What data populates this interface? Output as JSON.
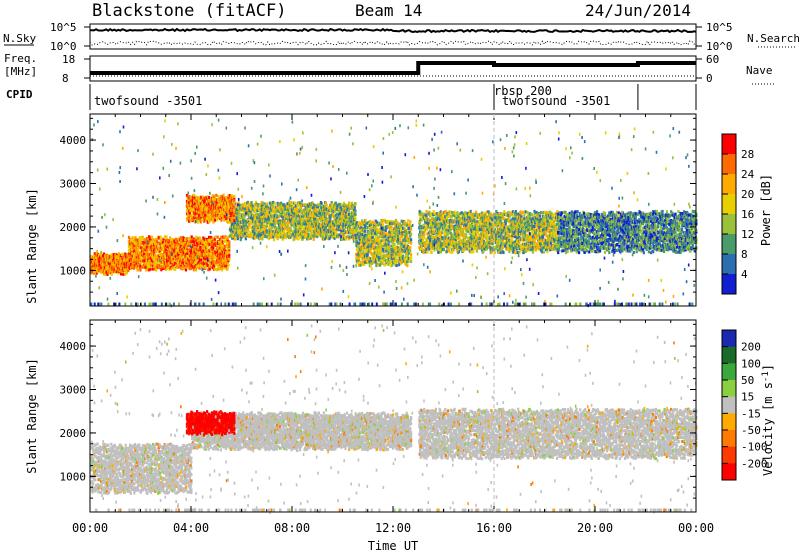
{
  "header": {
    "station": "Blackstone (fitACF)",
    "beam": "Beam 14",
    "date": "24/Jun/2014"
  },
  "noise_panel": {
    "left_label": "N.Sky",
    "right_label": "N.Search",
    "left_ticks": [
      "10^5",
      "10^0"
    ],
    "right_ticks": [
      "10^5",
      "10^0"
    ]
  },
  "freq_panel": {
    "left_label_1": "Freq.",
    "left_label_2": "[MHz]",
    "left_ticks": [
      "18",
      "8"
    ],
    "right_label": "Nave",
    "right_ticks": [
      "60",
      "0"
    ]
  },
  "cpid": {
    "label": "CPID",
    "programs": [
      "twofsound -3501",
      "rbsp 200",
      "twofsound -3501"
    ],
    "change_hours": [
      16.0,
      21.7
    ]
  },
  "axes": {
    "ylabel": "Slant Range [km]",
    "xlabel": "Time UT",
    "y_ticks": [
      "4000",
      "3000",
      "2000",
      "1000"
    ],
    "x_ticks": [
      "00:00",
      "04:00",
      "08:00",
      "12:00",
      "16:00",
      "20:00",
      "00:00"
    ]
  },
  "chart_data": [
    {
      "type": "heatmap",
      "panel": "power",
      "title": "",
      "xlabel": "",
      "ylabel": "Slant Range [km]",
      "xlim_hours": [
        0,
        24
      ],
      "ylim_km": [
        180,
        4600
      ],
      "colorbar_label": "Power [dB]",
      "colorbar_ticks": [
        "28",
        "24",
        "20",
        "16",
        "12",
        "8",
        "4"
      ],
      "colorbar_colors": [
        "#ff0000",
        "#ff6a00",
        "#ffaa00",
        "#e8d000",
        "#9bc03a",
        "#4a9a6a",
        "#2c6fb0",
        "#1020d0"
      ],
      "bands": [
        {
          "t0": 0.0,
          "t1": 1.5,
          "r0": 1000,
          "r1": 1400,
          "level": "high"
        },
        {
          "t0": 1.5,
          "t1": 5.5,
          "r0": 1100,
          "r1": 1800,
          "level": "high"
        },
        {
          "t0": 5.5,
          "t1": 10.5,
          "r0": 1800,
          "r1": 2600,
          "level": "mid"
        },
        {
          "t0": 10.5,
          "t1": 12.7,
          "r0": 1200,
          "r1": 2200,
          "level": "mid"
        },
        {
          "t0": 3.8,
          "t1": 5.7,
          "r0": 2200,
          "r1": 2750,
          "level": "high"
        },
        {
          "t0": 13.0,
          "t1": 18.5,
          "r0": 1500,
          "r1": 2400,
          "level": "mid"
        },
        {
          "t0": 18.5,
          "t1": 24.0,
          "r0": 1500,
          "r1": 2400,
          "level": "low"
        }
      ]
    },
    {
      "type": "heatmap",
      "panel": "velocity",
      "title": "",
      "xlabel": "Time UT",
      "ylabel": "Slant Range [km]",
      "xlim_hours": [
        0,
        24
      ],
      "ylim_km": [
        180,
        4600
      ],
      "colorbar_label": "Velocity [m s-1]",
      "colorbar_ticks": [
        "200",
        "100",
        "50",
        "15",
        "-15",
        "-50",
        "-100",
        "-200"
      ],
      "colorbar_colors": [
        "#1a2ab0",
        "#1a6a2a",
        "#3aa83a",
        "#8ad040",
        "#c0c0c0",
        "#ffaa00",
        "#ff7a00",
        "#ff3a00",
        "#ff0000"
      ],
      "bands": [
        {
          "t0": 0.0,
          "t1": 4.0,
          "r0": 700,
          "r1": 1800,
          "level": "ground"
        },
        {
          "t0": 4.0,
          "t1": 12.7,
          "r0": 1700,
          "r1": 2500,
          "level": "ground"
        },
        {
          "t0": 3.8,
          "t1": 5.7,
          "r0": 2050,
          "r1": 2500,
          "level": "red"
        },
        {
          "t0": 13.0,
          "t1": 24.0,
          "r0": 1500,
          "r1": 2600,
          "level": "ground"
        }
      ]
    }
  ]
}
